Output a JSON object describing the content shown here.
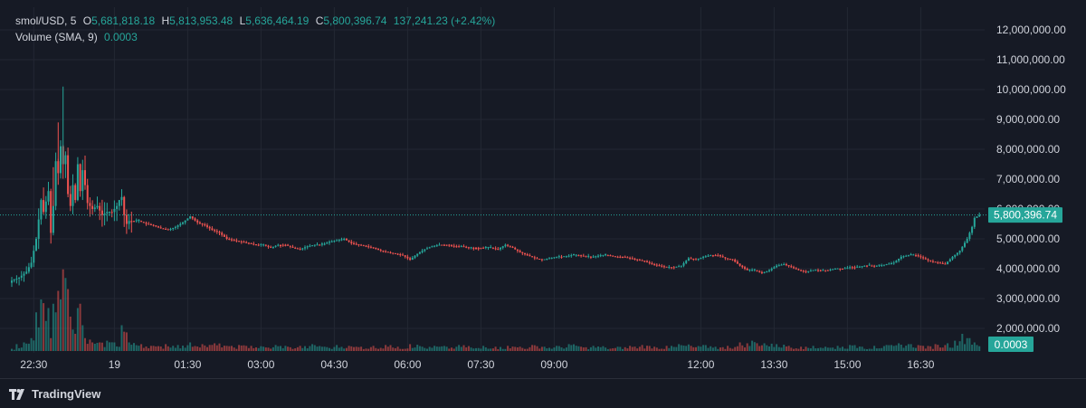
{
  "legend": {
    "symbol": "smol/USD",
    "interval": "5",
    "open_label": "O",
    "open": "5,681,818.18",
    "high_label": "H",
    "high": "5,813,953.48",
    "low_label": "L",
    "low": "5,636,464.19",
    "close_label": "C",
    "close": "5,800,396.74",
    "change": "137,241.23 (+2.42%)",
    "volume_label": "Volume (SMA, 9)",
    "volume_value": "0.0003"
  },
  "price_badge": "5,800,396.74",
  "volume_badge": "0.0003",
  "brand": "TradingView",
  "colors": {
    "up": "#26a69a",
    "down": "#ef5350",
    "badge": "#26a69a",
    "background": "#161a25"
  },
  "chart_data": {
    "type": "candlestick",
    "y_ticks": [
      2000000,
      3000000,
      4000000,
      5000000,
      6000000,
      7000000,
      8000000,
      9000000,
      10000000,
      11000000,
      12000000
    ],
    "y_tick_labels": [
      "2,000,000.00",
      "3,000,000.00",
      "4,000,000.00",
      "5,000,000.00",
      "6,000,000.00",
      "7,000,000.00",
      "8,000,000.00",
      "9,000,000.00",
      "10,000,000.00",
      "11,000,000.00",
      "12,000,000.00"
    ],
    "x_tick_labels": [
      "22:30",
      "19",
      "01:30",
      "03:00",
      "04:30",
      "06:00",
      "07:30",
      "09:00",
      "12:00",
      "13:30",
      "15:00",
      "16:30"
    ],
    "x_tick_index": [
      9,
      42,
      72,
      102,
      132,
      162,
      192,
      222,
      282,
      312,
      342,
      372
    ],
    "last_price": 5800396.74,
    "grid": true,
    "price_path": [
      [
        0,
        3600000
      ],
      [
        3,
        3700000
      ],
      [
        6,
        3900000
      ],
      [
        8,
        4200000
      ],
      [
        10,
        5000000
      ],
      [
        12,
        6300000
      ],
      [
        13,
        5900000
      ],
      [
        15,
        6600000
      ],
      [
        16,
        5200000
      ],
      [
        17,
        6100000
      ],
      [
        18,
        7600000
      ],
      [
        19,
        7200000
      ],
      [
        20,
        8100000
      ],
      [
        21,
        7500000
      ],
      [
        22,
        7800000
      ],
      [
        23,
        6500000
      ],
      [
        24,
        6100000
      ],
      [
        25,
        6800000
      ],
      [
        26,
        6300000
      ],
      [
        27,
        7500000
      ],
      [
        28,
        6600000
      ],
      [
        29,
        7300000
      ],
      [
        30,
        6800000
      ],
      [
        31,
        6200000
      ],
      [
        33,
        6000000
      ],
      [
        35,
        6100000
      ],
      [
        37,
        5800000
      ],
      [
        39,
        5900000
      ],
      [
        41,
        5900000
      ],
      [
        43,
        6100000
      ],
      [
        44,
        6300000
      ],
      [
        45,
        6400000
      ],
      [
        46,
        5800000
      ],
      [
        47,
        5500000
      ],
      [
        48,
        5600000
      ],
      [
        50,
        5600000
      ],
      [
        52,
        5600000
      ],
      [
        55,
        5500000
      ],
      [
        58,
        5450000
      ],
      [
        61,
        5350000
      ],
      [
        64,
        5300000
      ],
      [
        67,
        5400000
      ],
      [
        70,
        5550000
      ],
      [
        73,
        5750000
      ],
      [
        76,
        5550000
      ],
      [
        79,
        5450000
      ],
      [
        82,
        5300000
      ],
      [
        85,
        5200000
      ],
      [
        88,
        5000000
      ],
      [
        91,
        4950000
      ],
      [
        94,
        4900000
      ],
      [
        97,
        4850000
      ],
      [
        100,
        4800000
      ],
      [
        103,
        4800000
      ],
      [
        106,
        4700000
      ],
      [
        109,
        4800000
      ],
      [
        112,
        4800000
      ],
      [
        115,
        4700000
      ],
      [
        118,
        4650000
      ],
      [
        121,
        4750000
      ],
      [
        124,
        4800000
      ],
      [
        127,
        4800000
      ],
      [
        130,
        4900000
      ],
      [
        133,
        4950000
      ],
      [
        136,
        5000000
      ],
      [
        139,
        4850000
      ],
      [
        142,
        4800000
      ],
      [
        145,
        4750000
      ],
      [
        148,
        4700000
      ],
      [
        151,
        4600000
      ],
      [
        154,
        4550000
      ],
      [
        157,
        4500000
      ],
      [
        160,
        4450000
      ],
      [
        163,
        4300000
      ],
      [
        166,
        4500000
      ],
      [
        169,
        4650000
      ],
      [
        172,
        4750000
      ],
      [
        175,
        4800000
      ],
      [
        178,
        4800000
      ],
      [
        181,
        4750000
      ],
      [
        184,
        4750000
      ],
      [
        187,
        4700000
      ],
      [
        190,
        4700000
      ],
      [
        193,
        4700000
      ],
      [
        196,
        4700000
      ],
      [
        199,
        4650000
      ],
      [
        202,
        4800000
      ],
      [
        205,
        4700000
      ],
      [
        208,
        4550000
      ],
      [
        211,
        4450000
      ],
      [
        214,
        4350000
      ],
      [
        217,
        4300000
      ],
      [
        220,
        4350000
      ],
      [
        223,
        4400000
      ],
      [
        226,
        4400000
      ],
      [
        229,
        4450000
      ],
      [
        232,
        4450000
      ],
      [
        235,
        4400000
      ],
      [
        238,
        4400000
      ],
      [
        241,
        4450000
      ],
      [
        244,
        4450000
      ],
      [
        247,
        4400000
      ],
      [
        250,
        4400000
      ],
      [
        253,
        4350000
      ],
      [
        256,
        4300000
      ],
      [
        259,
        4250000
      ],
      [
        262,
        4150000
      ],
      [
        265,
        4100000
      ],
      [
        268,
        4050000
      ],
      [
        271,
        4050000
      ],
      [
        274,
        4100000
      ],
      [
        277,
        4350000
      ],
      [
        280,
        4300000
      ],
      [
        283,
        4400000
      ],
      [
        286,
        4450000
      ],
      [
        289,
        4450000
      ],
      [
        292,
        4350000
      ],
      [
        295,
        4300000
      ],
      [
        298,
        4100000
      ],
      [
        301,
        3950000
      ],
      [
        304,
        3950000
      ],
      [
        307,
        3850000
      ],
      [
        310,
        3950000
      ],
      [
        313,
        4100000
      ],
      [
        316,
        4150000
      ],
      [
        319,
        4050000
      ],
      [
        322,
        3950000
      ],
      [
        325,
        3900000
      ],
      [
        328,
        3950000
      ],
      [
        331,
        3950000
      ],
      [
        334,
        3950000
      ],
      [
        337,
        4000000
      ],
      [
        340,
        4000000
      ],
      [
        343,
        4050000
      ],
      [
        346,
        4050000
      ],
      [
        349,
        4100000
      ],
      [
        352,
        4100000
      ],
      [
        355,
        4100000
      ],
      [
        358,
        4150000
      ],
      [
        361,
        4200000
      ],
      [
        364,
        4400000
      ],
      [
        367,
        4450000
      ],
      [
        370,
        4450000
      ],
      [
        373,
        4350000
      ],
      [
        376,
        4250000
      ],
      [
        379,
        4200000
      ],
      [
        382,
        4150000
      ],
      [
        385,
        4400000
      ],
      [
        388,
        4600000
      ],
      [
        391,
        5000000
      ],
      [
        393,
        5400000
      ],
      [
        394,
        5700000
      ],
      [
        396,
        5800000
      ]
    ],
    "volume_ticks": [
      [
        2,
        0.08
      ],
      [
        5,
        0.1
      ],
      [
        8,
        0.15
      ],
      [
        10,
        0.45
      ],
      [
        12,
        0.6
      ],
      [
        14,
        0.35
      ],
      [
        15,
        0.5
      ],
      [
        16,
        0.15
      ],
      [
        17,
        0.55
      ],
      [
        18,
        0.45
      ],
      [
        19,
        0.7
      ],
      [
        20,
        0.6
      ],
      [
        21,
        0.95
      ],
      [
        22,
        0.85
      ],
      [
        24,
        0.4
      ],
      [
        25,
        0.25
      ],
      [
        26,
        0.2
      ],
      [
        27,
        0.5
      ],
      [
        28,
        0.55
      ],
      [
        29,
        0.3
      ],
      [
        30,
        0.15
      ],
      [
        33,
        0.1
      ],
      [
        36,
        0.1
      ],
      [
        39,
        0.12
      ],
      [
        42,
        0.1
      ],
      [
        45,
        0.3
      ],
      [
        48,
        0.1
      ],
      [
        53,
        0.08
      ],
      [
        58,
        0.06
      ],
      [
        63,
        0.08
      ],
      [
        68,
        0.07
      ],
      [
        73,
        0.1
      ],
      [
        78,
        0.08
      ],
      [
        83,
        0.09
      ],
      [
        88,
        0.06
      ],
      [
        93,
        0.07
      ],
      [
        98,
        0.06
      ],
      [
        103,
        0.05
      ],
      [
        108,
        0.07
      ],
      [
        113,
        0.05
      ],
      [
        118,
        0.06
      ],
      [
        123,
        0.08
      ],
      [
        128,
        0.05
      ],
      [
        133,
        0.07
      ],
      [
        138,
        0.06
      ],
      [
        143,
        0.05
      ],
      [
        148,
        0.06
      ],
      [
        153,
        0.07
      ],
      [
        158,
        0.05
      ],
      [
        163,
        0.08
      ],
      [
        168,
        0.05
      ],
      [
        173,
        0.06
      ],
      [
        178,
        0.05
      ],
      [
        183,
        0.07
      ],
      [
        188,
        0.04
      ],
      [
        193,
        0.06
      ],
      [
        198,
        0.05
      ],
      [
        203,
        0.06
      ],
      [
        208,
        0.05
      ],
      [
        213,
        0.07
      ],
      [
        218,
        0.05
      ],
      [
        223,
        0.06
      ],
      [
        228,
        0.08
      ],
      [
        233,
        0.05
      ],
      [
        238,
        0.06
      ],
      [
        243,
        0.04
      ],
      [
        248,
        0.05
      ],
      [
        253,
        0.06
      ],
      [
        258,
        0.07
      ],
      [
        263,
        0.05
      ],
      [
        268,
        0.06
      ],
      [
        273,
        0.08
      ],
      [
        278,
        0.06
      ],
      [
        283,
        0.07
      ],
      [
        288,
        0.05
      ],
      [
        293,
        0.06
      ],
      [
        298,
        0.1
      ],
      [
        303,
        0.12
      ],
      [
        308,
        0.09
      ],
      [
        313,
        0.08
      ],
      [
        318,
        0.06
      ],
      [
        323,
        0.05
      ],
      [
        328,
        0.06
      ],
      [
        333,
        0.05
      ],
      [
        338,
        0.06
      ],
      [
        343,
        0.07
      ],
      [
        348,
        0.05
      ],
      [
        353,
        0.06
      ],
      [
        358,
        0.07
      ],
      [
        363,
        0.09
      ],
      [
        368,
        0.08
      ],
      [
        373,
        0.06
      ],
      [
        378,
        0.08
      ],
      [
        383,
        0.09
      ],
      [
        386,
        0.12
      ],
      [
        389,
        0.2
      ],
      [
        392,
        0.15
      ],
      [
        394,
        0.1
      ]
    ]
  }
}
